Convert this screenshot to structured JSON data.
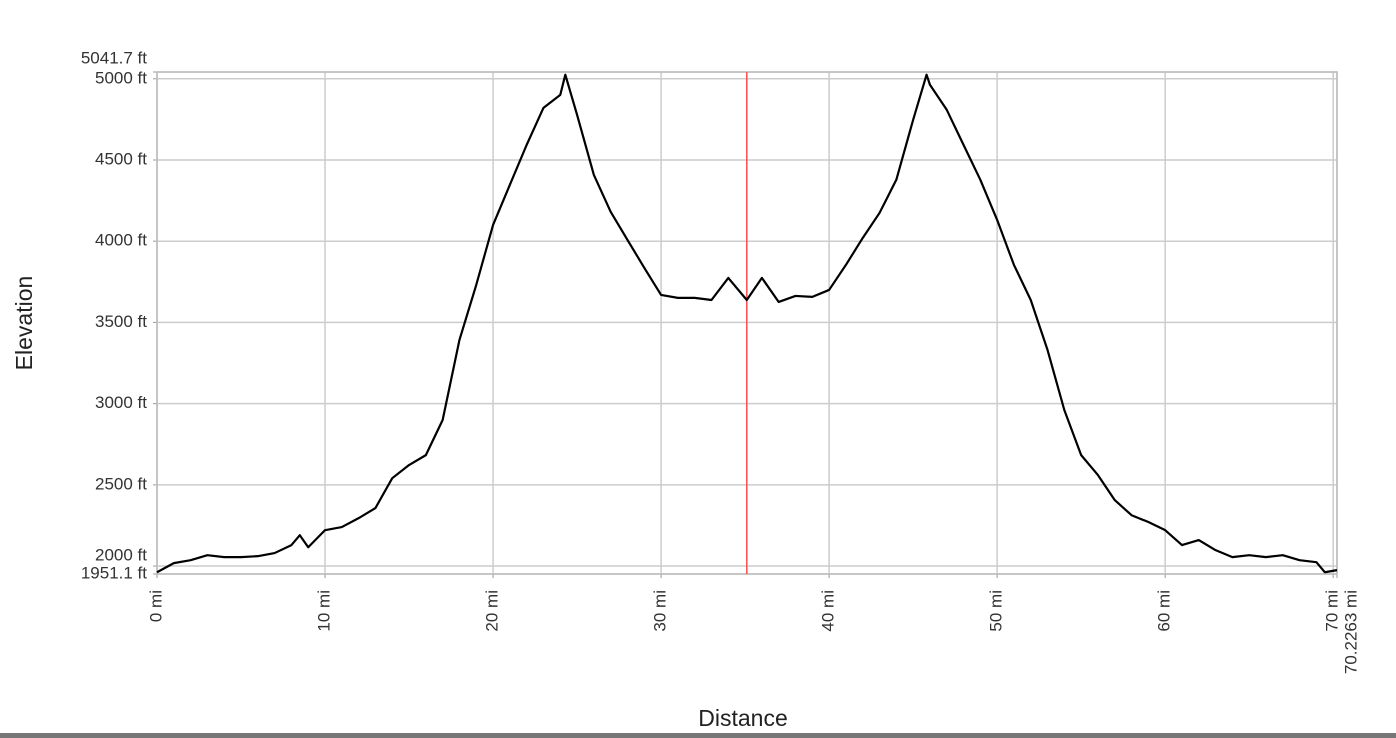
{
  "chart_data": {
    "type": "line",
    "x_label": "Distance",
    "y_label": "Elevation",
    "x": [
      0,
      1,
      2,
      3,
      4,
      5,
      6,
      7,
      8,
      8.5,
      9,
      10,
      11,
      12,
      13,
      14,
      15,
      16,
      17,
      18,
      19,
      20,
      21,
      22,
      23,
      24,
      24.3,
      25,
      26,
      27,
      28,
      29,
      30,
      31,
      32,
      33,
      34,
      35.1,
      36,
      37,
      38,
      39,
      40,
      41,
      42,
      43,
      44,
      45,
      45.8,
      46,
      47,
      48,
      49,
      50,
      51,
      52,
      53,
      54,
      55,
      56,
      57,
      58,
      59,
      60,
      61,
      62,
      63,
      64,
      65,
      66,
      67,
      68,
      69,
      69.5,
      70.2263
    ],
    "series": [
      {
        "color": "#000000",
        "values": [
          1962,
          2018,
          2036,
          2067,
          2055,
          2055,
          2061,
          2080,
          2129,
          2190,
          2116,
          2221,
          2240,
          2295,
          2357,
          2541,
          2622,
          2683,
          2899,
          3392,
          3731,
          4100,
          4347,
          4593,
          4821,
          4901,
          5025,
          4778,
          4408,
          4181,
          4008,
          3836,
          3669,
          3651,
          3651,
          3638,
          3774,
          3638,
          3774,
          3626,
          3663,
          3657,
          3700,
          3854,
          4020,
          4174,
          4378,
          4747,
          5025,
          4963,
          4809,
          4593,
          4378,
          4131,
          3854,
          3638,
          3330,
          2960,
          2683,
          2560,
          2406,
          2313,
          2271,
          2221,
          2129,
          2160,
          2098,
          2055,
          2067,
          2055,
          2067,
          2036,
          2024,
          1962,
          1975
        ]
      }
    ],
    "xlim": [
      0,
      70.2263
    ],
    "ylim": [
      1951.1,
      5041.7
    ],
    "xticks": [
      {
        "value": 0,
        "label": "0 mi"
      },
      {
        "value": 10,
        "label": "10 mi"
      },
      {
        "value": 20,
        "label": "20 mi"
      },
      {
        "value": 30,
        "label": "30 mi"
      },
      {
        "value": 40,
        "label": "40 mi"
      },
      {
        "value": 50,
        "label": "50 mi"
      },
      {
        "value": 60,
        "label": "60 mi"
      },
      {
        "value": 70,
        "label": "70 mi"
      },
      {
        "value": 70.2263,
        "label": "70.2263 mi"
      }
    ],
    "yticks": [
      {
        "value": 1951.1,
        "label": "1951.1 ft"
      },
      {
        "value": 2000,
        "label": "2000 ft"
      },
      {
        "value": 2500,
        "label": "2500 ft"
      },
      {
        "value": 3000,
        "label": "3000 ft"
      },
      {
        "value": 3500,
        "label": "3500 ft"
      },
      {
        "value": 4000,
        "label": "4000 ft"
      },
      {
        "value": 4500,
        "label": "4500 ft"
      },
      {
        "value": 5000,
        "label": "5000 ft"
      },
      {
        "value": 5041.7,
        "label": "5041.7 ft"
      }
    ],
    "grid": true,
    "cursor_x": 35.1,
    "cursor_color": "#ff4d4d"
  }
}
